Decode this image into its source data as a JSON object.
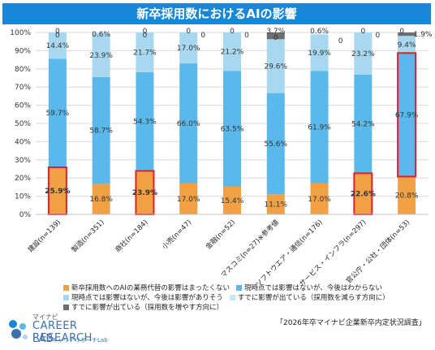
{
  "title": "新卒採用数におけるAIの影響",
  "legend": [
    {
      "label": "新卒採用数へのAIの業務代替の影響はまったくない",
      "color": "#f0a045"
    },
    {
      "label": "現時点では影響はないが、今後はわからない",
      "color": "#5ab8ea"
    },
    {
      "label": "現時点では影響はないが、今後は影響がありそう",
      "color": "#a8d8f0"
    },
    {
      "label": "すでに影響が出ている（採用数を減らす方向に）",
      "color": "#c7e6f6"
    },
    {
      "label": "すでに影響が出ている（採用数を増やす方向に）",
      "color": "#6e6e6e"
    }
  ],
  "brand": {
    "top": "マイナビ",
    "main": "CAREER RESEARCH",
    "lab": "LAB",
    "sub": "キャリアリサーチLab"
  },
  "source": "「2026年卒マイナビ企業新卒内定状況調査」",
  "chart_data": {
    "type": "bar",
    "stacked": true,
    "categories": [
      "建設(n=139)",
      "製造(n=351)",
      "商社(n=184)",
      "小売(n=47)",
      "金融(n=52)",
      "マスコミ(n=27)※参考値",
      "ソフトウエア・通信(n=176)",
      "サービス・インフラ(n=297)",
      "官公庁・公社・団体(n=53)"
    ],
    "ylim": [
      0,
      100
    ],
    "yticks": [
      "0%",
      "10%",
      "20%",
      "30%",
      "40%",
      "50%",
      "60%",
      "70%",
      "80%",
      "90%",
      "100%"
    ],
    "series": [
      {
        "name": "新卒採用数へのAIの業務代替の影響はまったくない",
        "color": "#f0a045",
        "values": [
          25.9,
          16.8,
          23.9,
          17.0,
          15.4,
          11.1,
          17.0,
          22.6,
          20.8
        ],
        "labels": [
          "25.9%",
          "16.8%",
          "23.9%",
          "17.0%",
          "15.4%",
          "11.1%",
          "17.0%",
          "22.6%",
          "20.8%"
        ]
      },
      {
        "name": "現時点では影響はないが、今後はわからない",
        "color": "#5ab8ea",
        "values": [
          59.7,
          58.7,
          54.3,
          66.0,
          63.5,
          55.6,
          61.9,
          54.2,
          67.9
        ],
        "labels": [
          "59.7%",
          "58.7%",
          "54.3%",
          "66.0%",
          "63.5%",
          "55.6%",
          "61.9%",
          "54.2%",
          "67.9%"
        ]
      },
      {
        "name": "現時点では影響はないが、今後は影響がありそう",
        "color": "#a8d8f0",
        "values": [
          14.4,
          23.9,
          21.7,
          17.0,
          21.2,
          29.6,
          19.9,
          23.2,
          9.4
        ],
        "labels": [
          "14.4%",
          "23.9%",
          "21.7%",
          "17.0%",
          "21.2%",
          "29.6%",
          "19.9%",
          "23.2%",
          "9.4%"
        ]
      },
      {
        "name": "すでに影響が出ている（採用数を減らす方向に）",
        "color": "#c7e6f6",
        "values": [
          0,
          0.6,
          0,
          0,
          0,
          0,
          0.6,
          0,
          0
        ],
        "labels": [
          "0",
          "0.6%",
          "0",
          "0",
          "0",
          "0",
          "0.6%",
          "0",
          "0"
        ]
      },
      {
        "name": "すでに影響が出ている（採用数を増やす方向に）",
        "color": "#6e6e6e",
        "values": [
          0,
          0,
          0,
          0,
          0,
          3.7,
          0,
          0,
          1.9
        ],
        "labels": [
          "0",
          "0",
          "0",
          "0",
          "0",
          "3.7%",
          "0",
          "0",
          "1.9%"
        ]
      }
    ],
    "highlighted": [
      "建設(n=139)-まったくない",
      "商社(n=184)-まったくない",
      "サービス・インフラ(n=297)-まったくない",
      "官公庁・公社・団体(n=53)-わからない"
    ],
    "grid": true,
    "legend_position": "bottom"
  }
}
